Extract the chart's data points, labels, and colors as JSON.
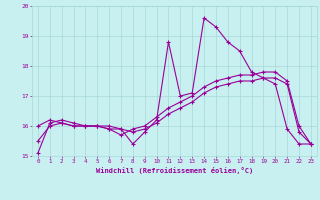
{
  "xlabel": "Windchill (Refroidissement éolien,°C)",
  "bg_color": "#c8f0f0",
  "line_color": "#990099",
  "grid_color": "#a8d8d8",
  "xlim": [
    -0.5,
    23.5
  ],
  "ylim": [
    15.0,
    20.0
  ],
  "yticks": [
    15,
    16,
    17,
    18,
    19,
    20
  ],
  "xticks": [
    0,
    1,
    2,
    3,
    4,
    5,
    6,
    7,
    8,
    9,
    10,
    11,
    12,
    13,
    14,
    15,
    16,
    17,
    18,
    19,
    20,
    21,
    22,
    23
  ],
  "series1_x": [
    0,
    1,
    2,
    3,
    4,
    5,
    6,
    7,
    8,
    9,
    10,
    11,
    12,
    13,
    14,
    15,
    16,
    17,
    18,
    19,
    20,
    21,
    22,
    23
  ],
  "series1_y": [
    15.1,
    16.1,
    16.2,
    16.1,
    16.0,
    16.0,
    16.0,
    15.9,
    15.4,
    15.8,
    16.2,
    18.8,
    17.0,
    17.1,
    19.6,
    19.3,
    18.8,
    18.5,
    17.8,
    17.6,
    17.4,
    15.9,
    15.4,
    15.4
  ],
  "series2_x": [
    0,
    1,
    2,
    3,
    4,
    5,
    6,
    7,
    8,
    9,
    10,
    11,
    12,
    13,
    14,
    15,
    16,
    17,
    18,
    19,
    20,
    21,
    22,
    23
  ],
  "series2_y": [
    16.0,
    16.2,
    16.1,
    16.0,
    16.0,
    16.0,
    15.9,
    15.7,
    15.9,
    16.0,
    16.3,
    16.6,
    16.8,
    17.0,
    17.3,
    17.5,
    17.6,
    17.7,
    17.7,
    17.8,
    17.8,
    17.5,
    16.0,
    15.4
  ],
  "series3_x": [
    0,
    1,
    2,
    3,
    4,
    5,
    6,
    7,
    8,
    9,
    10,
    11,
    12,
    13,
    14,
    15,
    16,
    17,
    18,
    19,
    20,
    21,
    22,
    23
  ],
  "series3_y": [
    15.5,
    16.0,
    16.1,
    16.0,
    16.0,
    16.0,
    15.9,
    15.9,
    15.8,
    15.9,
    16.1,
    16.4,
    16.6,
    16.8,
    17.1,
    17.3,
    17.4,
    17.5,
    17.5,
    17.6,
    17.6,
    17.4,
    15.8,
    15.4
  ]
}
